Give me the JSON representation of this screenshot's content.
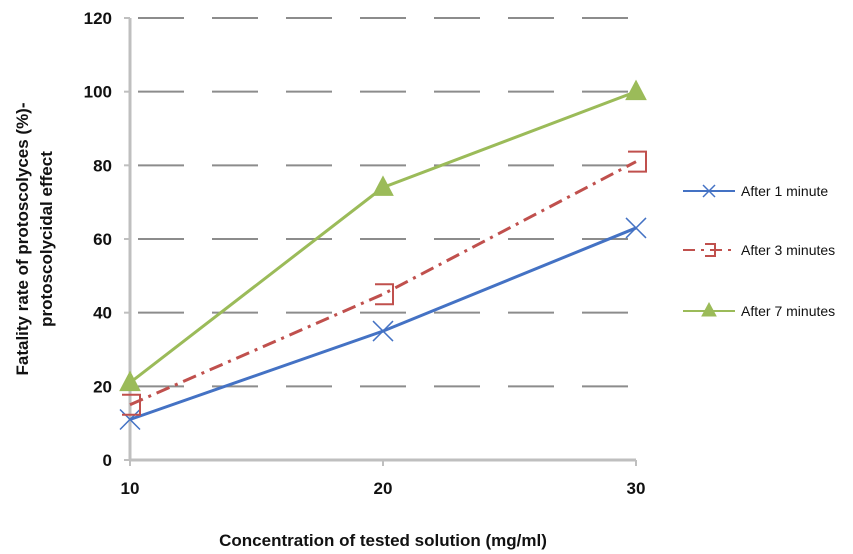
{
  "chart_data": {
    "type": "line",
    "x": [
      10,
      20,
      30
    ],
    "xlabel": "Concentration of tested solution (mg/ml)",
    "ylabel_lines": [
      "Fatality rate of protoscolyces (%)-",
      "protoscolycidal effect"
    ],
    "ylim": [
      0,
      120
    ],
    "yticks": [
      0,
      20,
      40,
      60,
      80,
      100,
      120
    ],
    "grid": true,
    "legend_position": "right",
    "series": [
      {
        "name": "After 1 minute",
        "values": [
          11,
          35,
          63
        ],
        "color": "#4472c4",
        "marker": "x",
        "dash": "solid"
      },
      {
        "name": "After 3 minutes",
        "values": [
          15,
          45,
          81
        ],
        "color": "#c0504d",
        "marker": "bracket",
        "dash": "dashdot"
      },
      {
        "name": "After 7 minutes",
        "values": [
          21,
          74,
          100
        ],
        "color": "#9bbb59",
        "marker": "triangle",
        "dash": "solid"
      }
    ]
  }
}
